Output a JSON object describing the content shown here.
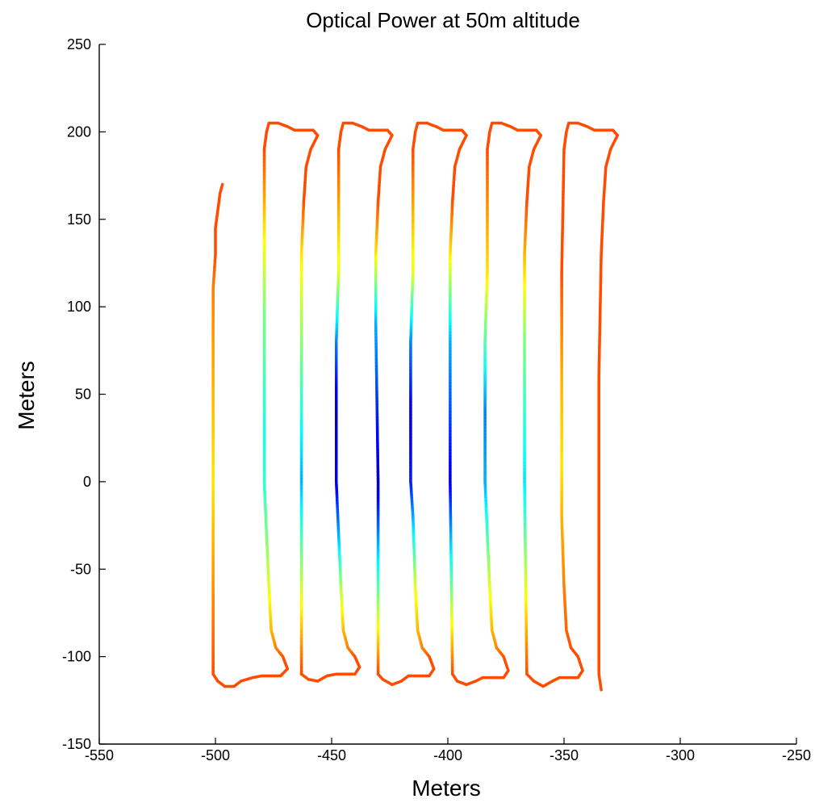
{
  "chart_data": {
    "type": "line",
    "title": "Optical Power at 50m altitude",
    "xlabel": "Meters",
    "ylabel": "Meters",
    "xlim": [
      -550,
      -250
    ],
    "ylim": [
      -150,
      250
    ],
    "xticks": [
      -550,
      -500,
      -450,
      -400,
      -350,
      -300,
      -250
    ],
    "yticks": [
      -150,
      -100,
      -50,
      0,
      50,
      100,
      150,
      200,
      250
    ],
    "xtick_labels": [
      "-550",
      "-500",
      "-450",
      "-400",
      "-350",
      "-300",
      "-250"
    ],
    "ytick_labels": [
      "-150",
      "-100",
      "-50",
      "0",
      "50",
      "100",
      "150",
      "200",
      "250"
    ],
    "grid": false,
    "colormap": "jet",
    "color_low": "#00008f",
    "color_high": "#800000",
    "series": [
      {
        "path": [
          [
            -497,
            170
          ],
          [
            -498,
            165
          ],
          [
            -499,
            155
          ],
          [
            -500,
            145
          ],
          [
            -500,
            130
          ],
          [
            -501,
            110
          ],
          [
            -501,
            0
          ],
          [
            -501,
            -110
          ],
          [
            -499,
            -114
          ],
          [
            -496,
            -117
          ],
          [
            -492,
            -117
          ],
          [
            -489,
            -114
          ],
          [
            -484,
            -112
          ],
          [
            -480,
            -111
          ],
          [
            -472,
            -111
          ],
          [
            -469,
            -107
          ],
          [
            -471,
            -100
          ],
          [
            -474,
            -95
          ],
          [
            -476,
            -85
          ],
          [
            -477,
            -60
          ],
          [
            -478,
            -30
          ],
          [
            -479,
            0
          ],
          [
            -479,
            30
          ],
          [
            -479,
            100
          ],
          [
            -479,
            190
          ],
          [
            -478,
            200
          ],
          [
            -477,
            205
          ],
          [
            -473,
            205
          ],
          [
            -469,
            203
          ],
          [
            -466,
            201
          ],
          [
            -458,
            201
          ],
          [
            -456,
            198
          ],
          [
            -459,
            190
          ],
          [
            -461,
            180
          ],
          [
            -462,
            160
          ],
          [
            -463,
            130
          ],
          [
            -463,
            0
          ],
          [
            -463,
            -110
          ]
        ],
        "values": [
          0.8,
          0.8,
          0.8,
          0.8,
          0.8,
          0.75,
          0.65,
          0.8,
          0.8,
          0.8,
          0.8,
          0.8,
          0.8,
          0.8,
          0.8,
          0.8,
          0.8,
          0.75,
          0.7,
          0.6,
          0.5,
          0.42,
          0.4,
          0.5,
          0.8,
          0.8,
          0.8,
          0.8,
          0.8,
          0.8,
          0.8,
          0.8,
          0.8,
          0.8,
          0.8,
          0.65,
          0.3,
          0.8
        ]
      },
      {
        "path": [
          [
            -463,
            -110
          ],
          [
            -460,
            -113
          ],
          [
            -456,
            -114
          ],
          [
            -452,
            -111
          ],
          [
            -448,
            -110
          ],
          [
            -440,
            -110
          ],
          [
            -438,
            -106
          ],
          [
            -440,
            -100
          ],
          [
            -443,
            -95
          ],
          [
            -445,
            -85
          ],
          [
            -446,
            -60
          ],
          [
            -447,
            -30
          ],
          [
            -448,
            0
          ],
          [
            -448,
            40
          ],
          [
            -448,
            80
          ],
          [
            -447,
            120
          ],
          [
            -447,
            190
          ],
          [
            -446,
            200
          ],
          [
            -445,
            205
          ],
          [
            -441,
            205
          ],
          [
            -437,
            203
          ],
          [
            -434,
            201
          ],
          [
            -426,
            201
          ],
          [
            -424,
            198
          ],
          [
            -427,
            190
          ],
          [
            -429,
            180
          ],
          [
            -430,
            160
          ],
          [
            -431,
            130
          ],
          [
            -431,
            90
          ],
          [
            -430,
            0
          ],
          [
            -430,
            -110
          ]
        ],
        "values": [
          0.8,
          0.8,
          0.8,
          0.8,
          0.8,
          0.8,
          0.8,
          0.8,
          0.75,
          0.7,
          0.55,
          0.3,
          0.1,
          0.05,
          0.25,
          0.6,
          0.8,
          0.8,
          0.8,
          0.8,
          0.8,
          0.8,
          0.8,
          0.8,
          0.8,
          0.8,
          0.8,
          0.65,
          0.3,
          0.05,
          0.8
        ]
      },
      {
        "path": [
          [
            -430,
            -110
          ],
          [
            -428,
            -113
          ],
          [
            -424,
            -116
          ],
          [
            -420,
            -114
          ],
          [
            -417,
            -111
          ],
          [
            -408,
            -111
          ],
          [
            -406,
            -107
          ],
          [
            -408,
            -100
          ],
          [
            -411,
            -95
          ],
          [
            -413,
            -85
          ],
          [
            -414,
            -60
          ],
          [
            -415,
            -20
          ],
          [
            -416,
            0
          ],
          [
            -416,
            40
          ],
          [
            -416,
            80
          ],
          [
            -415,
            120
          ],
          [
            -415,
            190
          ],
          [
            -414,
            200
          ],
          [
            -413,
            205
          ],
          [
            -409,
            205
          ],
          [
            -405,
            203
          ],
          [
            -402,
            201
          ],
          [
            -394,
            201
          ],
          [
            -392,
            198
          ],
          [
            -395,
            190
          ],
          [
            -397,
            180
          ],
          [
            -398,
            160
          ],
          [
            -399,
            130
          ],
          [
            -399,
            80
          ],
          [
            -399,
            0
          ],
          [
            -398,
            -110
          ]
        ],
        "values": [
          0.8,
          0.8,
          0.8,
          0.8,
          0.8,
          0.8,
          0.8,
          0.8,
          0.75,
          0.7,
          0.6,
          0.3,
          0.15,
          0.1,
          0.25,
          0.6,
          0.8,
          0.8,
          0.8,
          0.8,
          0.8,
          0.8,
          0.8,
          0.8,
          0.8,
          0.8,
          0.8,
          0.65,
          0.3,
          0.1,
          0.8
        ]
      },
      {
        "path": [
          [
            -398,
            -110
          ],
          [
            -396,
            -114
          ],
          [
            -392,
            -116
          ],
          [
            -388,
            -114
          ],
          [
            -385,
            -112
          ],
          [
            -376,
            -112
          ],
          [
            -374,
            -108
          ],
          [
            -376,
            -100
          ],
          [
            -379,
            -95
          ],
          [
            -381,
            -85
          ],
          [
            -382,
            -60
          ],
          [
            -383,
            -30
          ],
          [
            -384,
            0
          ],
          [
            -384,
            40
          ],
          [
            -384,
            80
          ],
          [
            -383,
            120
          ],
          [
            -383,
            190
          ],
          [
            -382,
            200
          ],
          [
            -381,
            205
          ],
          [
            -377,
            205
          ],
          [
            -373,
            203
          ],
          [
            -370,
            201
          ],
          [
            -362,
            201
          ],
          [
            -360,
            198
          ],
          [
            -363,
            190
          ],
          [
            -365,
            180
          ],
          [
            -366,
            160
          ],
          [
            -367,
            130
          ],
          [
            -367,
            80
          ],
          [
            -367,
            0
          ],
          [
            -366,
            -110
          ]
        ],
        "values": [
          0.8,
          0.8,
          0.8,
          0.8,
          0.8,
          0.8,
          0.8,
          0.8,
          0.75,
          0.7,
          0.6,
          0.45,
          0.3,
          0.25,
          0.45,
          0.65,
          0.8,
          0.8,
          0.8,
          0.8,
          0.8,
          0.8,
          0.8,
          0.8,
          0.8,
          0.8,
          0.8,
          0.7,
          0.5,
          0.35,
          0.8
        ]
      },
      {
        "path": [
          [
            -366,
            -110
          ],
          [
            -363,
            -114
          ],
          [
            -359,
            -117
          ],
          [
            -355,
            -114
          ],
          [
            -352,
            -112
          ],
          [
            -344,
            -112
          ],
          [
            -342,
            -108
          ],
          [
            -344,
            -100
          ],
          [
            -347,
            -95
          ],
          [
            -349,
            -85
          ],
          [
            -350,
            -60
          ],
          [
            -351,
            -20
          ],
          [
            -351,
            10
          ],
          [
            -351,
            60
          ],
          [
            -351,
            120
          ],
          [
            -350,
            190
          ],
          [
            -349,
            200
          ],
          [
            -348,
            205
          ],
          [
            -344,
            205
          ],
          [
            -340,
            203
          ],
          [
            -337,
            201
          ],
          [
            -329,
            201
          ],
          [
            -327,
            198
          ],
          [
            -330,
            190
          ],
          [
            -332,
            180
          ],
          [
            -333,
            160
          ],
          [
            -334,
            130
          ],
          [
            -335,
            60
          ],
          [
            -335,
            0
          ],
          [
            -335,
            -110
          ],
          [
            -334,
            -119
          ]
        ],
        "values": [
          0.8,
          0.8,
          0.8,
          0.8,
          0.8,
          0.8,
          0.8,
          0.8,
          0.8,
          0.78,
          0.75,
          0.7,
          0.65,
          0.7,
          0.8,
          0.8,
          0.8,
          0.8,
          0.8,
          0.8,
          0.8,
          0.8,
          0.8,
          0.8,
          0.8,
          0.8,
          0.8,
          0.8,
          0.8,
          0.8,
          0.8
        ]
      }
    ]
  }
}
